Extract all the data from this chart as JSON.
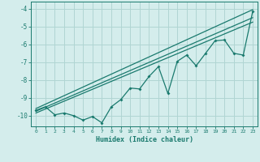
{
  "xlabel": "Humidex (Indice chaleur)",
  "xlim": [
    -0.5,
    23.5
  ],
  "ylim": [
    -10.6,
    -3.6
  ],
  "yticks": [
    -10,
    -9,
    -8,
    -7,
    -6,
    -5,
    -4
  ],
  "xticks": [
    0,
    1,
    2,
    3,
    4,
    5,
    6,
    7,
    8,
    9,
    10,
    11,
    12,
    13,
    14,
    15,
    16,
    17,
    18,
    19,
    20,
    21,
    22,
    23
  ],
  "bg_color": "#d4edec",
  "grid_color": "#b0d5d3",
  "line_color": "#1a7a6e",
  "line1_x": [
    0,
    1,
    2,
    3,
    4,
    5,
    6,
    7,
    8,
    9,
    10,
    11,
    12,
    13,
    14,
    15,
    16,
    17,
    18,
    19,
    20,
    21,
    22,
    23
  ],
  "line1_y": [
    -9.7,
    -9.5,
    -9.95,
    -9.85,
    -10.0,
    -10.25,
    -10.05,
    -10.4,
    -9.5,
    -9.1,
    -8.45,
    -8.5,
    -7.8,
    -7.25,
    -8.75,
    -6.95,
    -6.6,
    -7.2,
    -6.5,
    -5.8,
    -5.75,
    -6.5,
    -6.6,
    -4.15
  ],
  "line2_x": [
    0,
    23
  ],
  "line2_y": [
    -9.6,
    -4.05
  ],
  "line3_x": [
    0,
    23
  ],
  "line3_y": [
    -9.75,
    -4.5
  ],
  "line4_x": [
    0,
    23
  ],
  "line4_y": [
    -9.85,
    -4.75
  ]
}
